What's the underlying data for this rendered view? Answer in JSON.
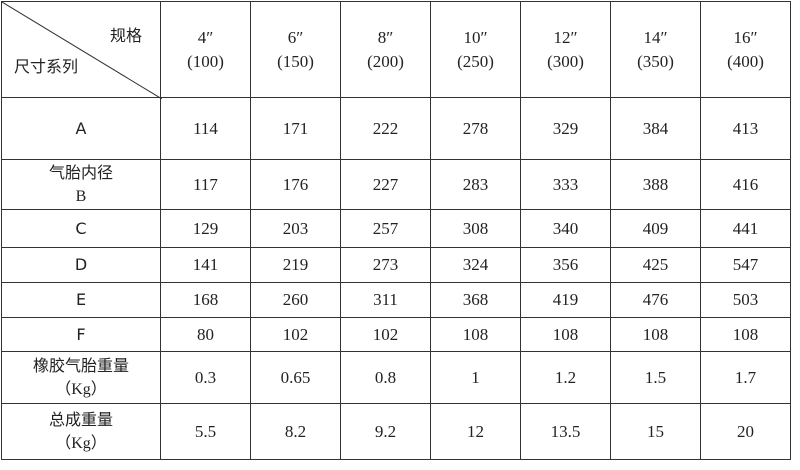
{
  "table": {
    "header": {
      "corner_top": "规格",
      "corner_bottom": "尺寸系列",
      "columns": [
        {
          "size": "4″",
          "dn": "(100)"
        },
        {
          "size": "6″",
          "dn": "(150)"
        },
        {
          "size": "8″",
          "dn": "(200)"
        },
        {
          "size": "10″",
          "dn": "(250)"
        },
        {
          "size": "12″",
          "dn": "(300)"
        },
        {
          "size": "14″",
          "dn": "(350)"
        },
        {
          "size": "16″",
          "dn": "(400)"
        }
      ]
    },
    "rows": [
      {
        "label": [
          "A"
        ],
        "cells": [
          "114",
          "171",
          "222",
          "278",
          "329",
          "384",
          "413"
        ]
      },
      {
        "label": [
          "气胎内径",
          "B"
        ],
        "cells": [
          "117",
          "176",
          "227",
          "283",
          "333",
          "388",
          "416"
        ]
      },
      {
        "label": [
          "C"
        ],
        "cells": [
          "129",
          "203",
          "257",
          "308",
          "340",
          "409",
          "441"
        ]
      },
      {
        "label": [
          "D"
        ],
        "cells": [
          "141",
          "219",
          "273",
          "324",
          "356",
          "425",
          "547"
        ]
      },
      {
        "label": [
          "E"
        ],
        "cells": [
          "168",
          "260",
          "311",
          "368",
          "419",
          "476",
          "503"
        ]
      },
      {
        "label": [
          "F"
        ],
        "cells": [
          "80",
          "102",
          "102",
          "108",
          "108",
          "108",
          "108"
        ]
      },
      {
        "label": [
          "橡胶气胎重量",
          "（Kg）"
        ],
        "cells": [
          "0.3",
          "0.65",
          "0.8",
          "1",
          "1.2",
          "1.5",
          "1.7"
        ]
      },
      {
        "label": [
          "总成重量",
          "（Kg）"
        ],
        "cells": [
          "5.5",
          "8.2",
          "9.2",
          "12",
          "13.5",
          "15",
          "20"
        ]
      }
    ]
  }
}
